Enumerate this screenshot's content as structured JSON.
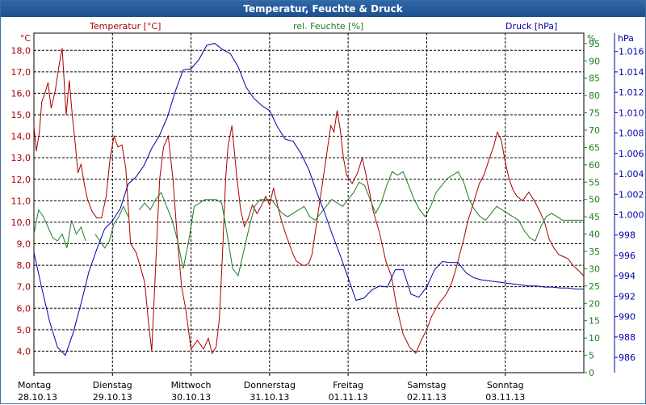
{
  "window": {
    "title": "Temperatur, Feuchte & Druck"
  },
  "colors": {
    "temperature": "#aa0000",
    "humidity": "#1e7d1e",
    "pressure": "#0000aa",
    "grid": "#000000",
    "titlebar": "#1d4f8c"
  },
  "chart_data": {
    "type": "line",
    "title": "Temperatur, Feuchte & Druck",
    "x_days": [
      {
        "day": "Montag",
        "date": "28.10.13"
      },
      {
        "day": "Dienstag",
        "date": "29.10.13"
      },
      {
        "day": "Mittwoch",
        "date": "30.10.13"
      },
      {
        "day": "Donnerstag",
        "date": "31.10.13"
      },
      {
        "day": "Freitag",
        "date": "01.11.13"
      },
      {
        "day": "Samstag",
        "date": "02.11.13"
      },
      {
        "day": "Sonntag",
        "date": "03.11.13"
      }
    ],
    "x_range_days": [
      0,
      7
    ],
    "axes": {
      "temperature": {
        "unit": "°C",
        "label": "Temperatur [°C]",
        "min": 3.0,
        "max": 18.8,
        "ticks": [
          "4,0",
          "5,0",
          "6,0",
          "7,0",
          "8,0",
          "9,0",
          "10,0",
          "11,0",
          "12,0",
          "13,0",
          "14,0",
          "15,0",
          "16,0",
          "17,0",
          "18,0"
        ]
      },
      "humidity": {
        "unit": "%",
        "label": "rel. Feuchte [%]",
        "min": 0,
        "max": 98,
        "ticks": [
          "0",
          "5",
          "10",
          "15",
          "20",
          "25",
          "30",
          "35",
          "40",
          "45",
          "50",
          "55",
          "60",
          "65",
          "70",
          "75",
          "80",
          "85",
          "90",
          "95"
        ]
      },
      "pressure": {
        "unit": "hPa",
        "label": "Druck [hPa]",
        "min": 984.5,
        "max": 1017.8,
        "ticks": [
          "986",
          "988",
          "990",
          "992",
          "994",
          "996",
          "998",
          "1.000",
          "1.002",
          "1.004",
          "1.006",
          "1.008",
          "1.010",
          "1.012",
          "1.014",
          "1.016"
        ]
      }
    },
    "series": [
      {
        "name": "Temperatur [°C]",
        "axis": "temperature",
        "x": [
          0,
          0.03,
          0.07,
          0.1,
          0.14,
          0.18,
          0.22,
          0.27,
          0.32,
          0.36,
          0.41,
          0.45,
          0.49,
          0.53,
          0.56,
          0.6,
          0.64,
          0.68,
          0.74,
          0.8,
          0.86,
          0.92,
          0.97,
          1.02,
          1.07,
          1.12,
          1.17,
          1.23,
          1.3,
          1.35,
          1.41,
          1.46,
          1.5,
          1.55,
          1.6,
          1.65,
          1.71,
          1.77,
          1.82,
          1.88,
          1.93,
          2.0,
          2.08,
          2.16,
          2.22,
          2.27,
          2.32,
          2.36,
          2.4,
          2.44,
          2.47,
          2.52,
          2.58,
          2.63,
          2.68,
          2.73,
          2.78,
          2.84,
          2.9,
          2.95,
          3.0,
          3.05,
          3.1,
          3.15,
          3.2,
          3.25,
          3.3,
          3.34,
          3.38,
          3.42,
          3.46,
          3.5,
          3.54,
          3.58,
          3.62,
          3.66,
          3.7,
          3.74,
          3.78,
          3.82,
          3.86,
          3.9,
          3.94,
          3.98,
          4.05,
          4.12,
          4.18,
          4.25,
          4.32,
          4.4,
          4.48,
          4.55,
          4.62,
          4.7,
          4.78,
          4.86,
          4.93,
          5.0,
          5.06,
          5.12,
          5.17,
          5.22,
          5.27,
          5.32,
          5.37,
          5.42,
          5.47,
          5.52,
          5.57,
          5.62,
          5.67,
          5.73,
          5.8,
          5.85,
          5.9,
          5.95,
          6.0,
          6.05,
          6.1,
          6.15,
          6.22,
          6.3,
          6.37,
          6.44,
          6.5,
          6.56,
          6.62,
          6.68,
          6.74,
          6.8,
          6.86,
          6.92,
          7.0
        ],
        "y": [
          14.5,
          13.3,
          14.2,
          15.6,
          16.0,
          16.5,
          15.3,
          16.1,
          17.3,
          18.1,
          15.0,
          16.6,
          14.9,
          13.5,
          12.3,
          12.7,
          11.8,
          11.1,
          10.5,
          10.2,
          10.2,
          11.2,
          13.0,
          14.0,
          13.5,
          13.6,
          12.5,
          9.0,
          8.6,
          8.0,
          7.2,
          5.3,
          4.0,
          8.0,
          12.0,
          13.5,
          14.0,
          12.0,
          9.5,
          7.0,
          6.0,
          4.1,
          4.5,
          4.1,
          4.6,
          3.9,
          4.2,
          5.5,
          8.5,
          12.0,
          13.5,
          14.5,
          12.2,
          10.6,
          9.8,
          10.2,
          10.8,
          10.4,
          10.8,
          11.2,
          10.8,
          11.6,
          10.8,
          10.1,
          9.5,
          9.0,
          8.5,
          8.2,
          8.1,
          8.0,
          8.0,
          8.1,
          8.5,
          9.5,
          10.5,
          11.5,
          12.5,
          13.5,
          14.5,
          14.2,
          15.2,
          14.3,
          13.0,
          12.2,
          11.8,
          12.3,
          13.0,
          11.8,
          10.5,
          9.5,
          8.2,
          7.5,
          6.0,
          4.8,
          4.2,
          3.9,
          4.5,
          5.0,
          5.6,
          6.0,
          6.3,
          6.5,
          6.8,
          7.2,
          7.8,
          8.5,
          9.2,
          10.0,
          10.6,
          11.2,
          11.8,
          12.2,
          13.0,
          13.5,
          14.2,
          13.8,
          12.8,
          12.0,
          11.5,
          11.2,
          11.0,
          11.4,
          11.0,
          10.5,
          10.0,
          9.2,
          8.8,
          8.5,
          8.4,
          8.3,
          8.0,
          7.8,
          7.5
        ],
        "note_y_source": "x positions of the temperature trace measured from the screenshot; values read off the left axis",
        "y_pixel_free": true
      },
      {
        "name": "rel. Feuchte [%]",
        "axis": "humidity",
        "x": [
          0,
          0.06,
          0.12,
          0.18,
          0.24,
          0.3,
          0.36,
          0.42,
          0.48,
          0.54,
          0.6,
          0.66,
          0.72,
          0.78,
          0.84,
          0.9,
          0.96,
          1.02,
          1.08,
          1.14,
          1.2,
          1.27,
          1.34,
          1.41,
          1.48,
          1.55,
          1.62,
          1.69,
          1.76,
          1.83,
          1.9,
          1.97,
          2.04,
          2.11,
          2.18,
          2.25,
          2.32,
          2.39,
          2.46,
          2.53,
          2.6,
          2.67,
          2.74,
          2.81,
          2.88,
          2.95,
          3.02,
          3.09,
          3.16,
          3.23,
          3.3,
          3.37,
          3.44,
          3.51,
          3.58,
          3.65,
          3.72,
          3.79,
          3.86,
          3.93,
          4.0,
          4.07,
          4.14,
          4.21,
          4.28,
          4.35,
          4.42,
          4.49,
          4.56,
          4.63,
          4.7,
          4.77,
          4.84,
          4.91,
          4.98,
          5.05,
          5.12,
          5.19,
          5.26,
          5.33,
          5.4,
          5.47,
          5.54,
          5.61,
          5.68,
          5.75,
          5.82,
          5.89,
          5.96,
          6.03,
          6.1,
          6.17,
          6.24,
          6.31,
          6.38,
          6.45,
          6.52,
          6.59,
          6.66,
          6.73,
          6.8,
          6.87,
          6.94,
          7.0
        ],
        "y": [
          40,
          47,
          45,
          42,
          39,
          38,
          40,
          36,
          44,
          40,
          42,
          38,
          null,
          40,
          38,
          36,
          38,
          43,
          45,
          48,
          45,
          null,
          47,
          49,
          47,
          50,
          52,
          48,
          44,
          38,
          30,
          38,
          48,
          49,
          50,
          50,
          50,
          49,
          40,
          30,
          28,
          35,
          42,
          48,
          50,
          50,
          50,
          48,
          46,
          45,
          46,
          47,
          48,
          45,
          44,
          46,
          48,
          50,
          49,
          48,
          50,
          52,
          55,
          54,
          50,
          46,
          49,
          54,
          58,
          57,
          58,
          54,
          50,
          47,
          45,
          48,
          52,
          54,
          56,
          57,
          58,
          55,
          50,
          47,
          45,
          44,
          46,
          48,
          47,
          46,
          45,
          44,
          41,
          39,
          38,
          42,
          45,
          46,
          45,
          44,
          44,
          44,
          44,
          44
        ],
        "y_pixel_free": true
      },
      {
        "name": "Druck [hPa]",
        "axis": "pressure",
        "x": [
          0,
          0.1,
          0.2,
          0.3,
          0.4,
          0.5,
          0.6,
          0.7,
          0.8,
          0.9,
          1.0,
          1.1,
          1.2,
          1.3,
          1.4,
          1.5,
          1.6,
          1.7,
          1.8,
          1.9,
          2.0,
          2.1,
          2.2,
          2.3,
          2.4,
          2.5,
          2.6,
          2.7,
          2.8,
          2.9,
          3.0,
          3.1,
          3.2,
          3.3,
          3.4,
          3.5,
          3.6,
          3.7,
          3.8,
          3.9,
          4.0,
          4.1,
          4.2,
          4.3,
          4.4,
          4.5,
          4.6,
          4.7,
          4.8,
          4.9,
          5.0,
          5.1,
          5.2,
          5.3,
          5.4,
          5.5,
          5.6,
          5.7,
          5.8,
          5.9,
          6.0,
          6.1,
          6.2,
          6.3,
          6.4,
          6.5,
          6.6,
          6.7,
          6.8,
          6.9,
          7.0
        ],
        "y": [
          996.3,
          992.8,
          989.5,
          987.0,
          986.2,
          988.4,
          991.3,
          994.4,
          996.6,
          998.6,
          999.4,
          1000.6,
          1003.0,
          1003.7,
          1004.8,
          1006.5,
          1007.8,
          1009.6,
          1012.1,
          1014.2,
          1014.3,
          1015.2,
          1016.6,
          1016.8,
          1016.2,
          1015.8,
          1014.5,
          1012.5,
          1011.4,
          1010.7,
          1010.2,
          1008.6,
          1007.4,
          1007.2,
          1006.0,
          1004.4,
          1002.2,
          1000.2,
          998.0,
          996.0,
          993.8,
          991.6,
          991.8,
          992.6,
          993.0,
          992.9,
          994.6,
          994.6,
          992.2,
          991.9,
          992.9,
          994.6,
          995.4,
          995.3,
          995.3,
          994.3,
          993.8,
          993.6,
          993.5,
          993.4,
          993.3,
          993.2,
          993.1,
          993.0,
          993.0,
          992.9,
          992.9,
          992.8,
          992.8,
          992.7,
          992.7
        ],
        "y_pixel_free": true
      }
    ]
  }
}
